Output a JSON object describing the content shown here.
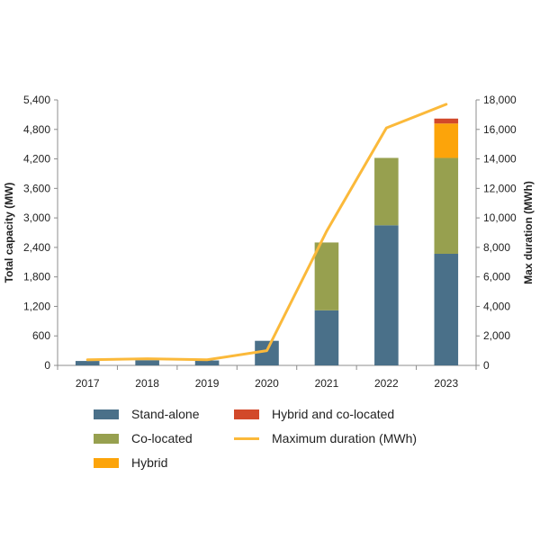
{
  "chart_data": {
    "type": "bar",
    "categories": [
      "2017",
      "2018",
      "2019",
      "2020",
      "2021",
      "2022",
      "2023"
    ],
    "series": [
      {
        "name": "Stand-alone",
        "axis": "left",
        "kind": "bar",
        "color": "#4a7089",
        "values": [
          90,
          105,
          100,
          500,
          1120,
          2850,
          2270
        ]
      },
      {
        "name": "Co-located",
        "axis": "left",
        "kind": "bar",
        "color": "#97a04f",
        "values": [
          0,
          0,
          0,
          0,
          1380,
          1370,
          1950
        ]
      },
      {
        "name": "Hybrid",
        "axis": "left",
        "kind": "bar",
        "color": "#fca40a",
        "values": [
          0,
          0,
          0,
          0,
          0,
          0,
          700
        ]
      },
      {
        "name": "Hybrid and co-located",
        "axis": "left",
        "kind": "bar",
        "color": "#d2492a",
        "values": [
          0,
          0,
          0,
          0,
          0,
          0,
          100
        ]
      },
      {
        "name": "Maximum duration (MWh)",
        "axis": "right",
        "kind": "line",
        "color": "#fbb93a",
        "values": [
          380,
          450,
          380,
          1000,
          9100,
          16100,
          17700
        ]
      }
    ],
    "ylabel": "Total capacity (MW)",
    "y2label": "Max duration (MWh)",
    "ylim": [
      0,
      5400
    ],
    "y2lim": [
      0,
      18000
    ],
    "yticks": [
      "0",
      "600",
      "1,200",
      "1,800",
      "2,400",
      "3,000",
      "3,600",
      "4,200",
      "4,800",
      "5,400"
    ],
    "y2ticks": [
      "0",
      "2,000",
      "4,000",
      "6,000",
      "8,000",
      "10,000",
      "12,000",
      "14,000",
      "16,000",
      "18,000"
    ],
    "grid": false,
    "legend_position": "bottom"
  }
}
